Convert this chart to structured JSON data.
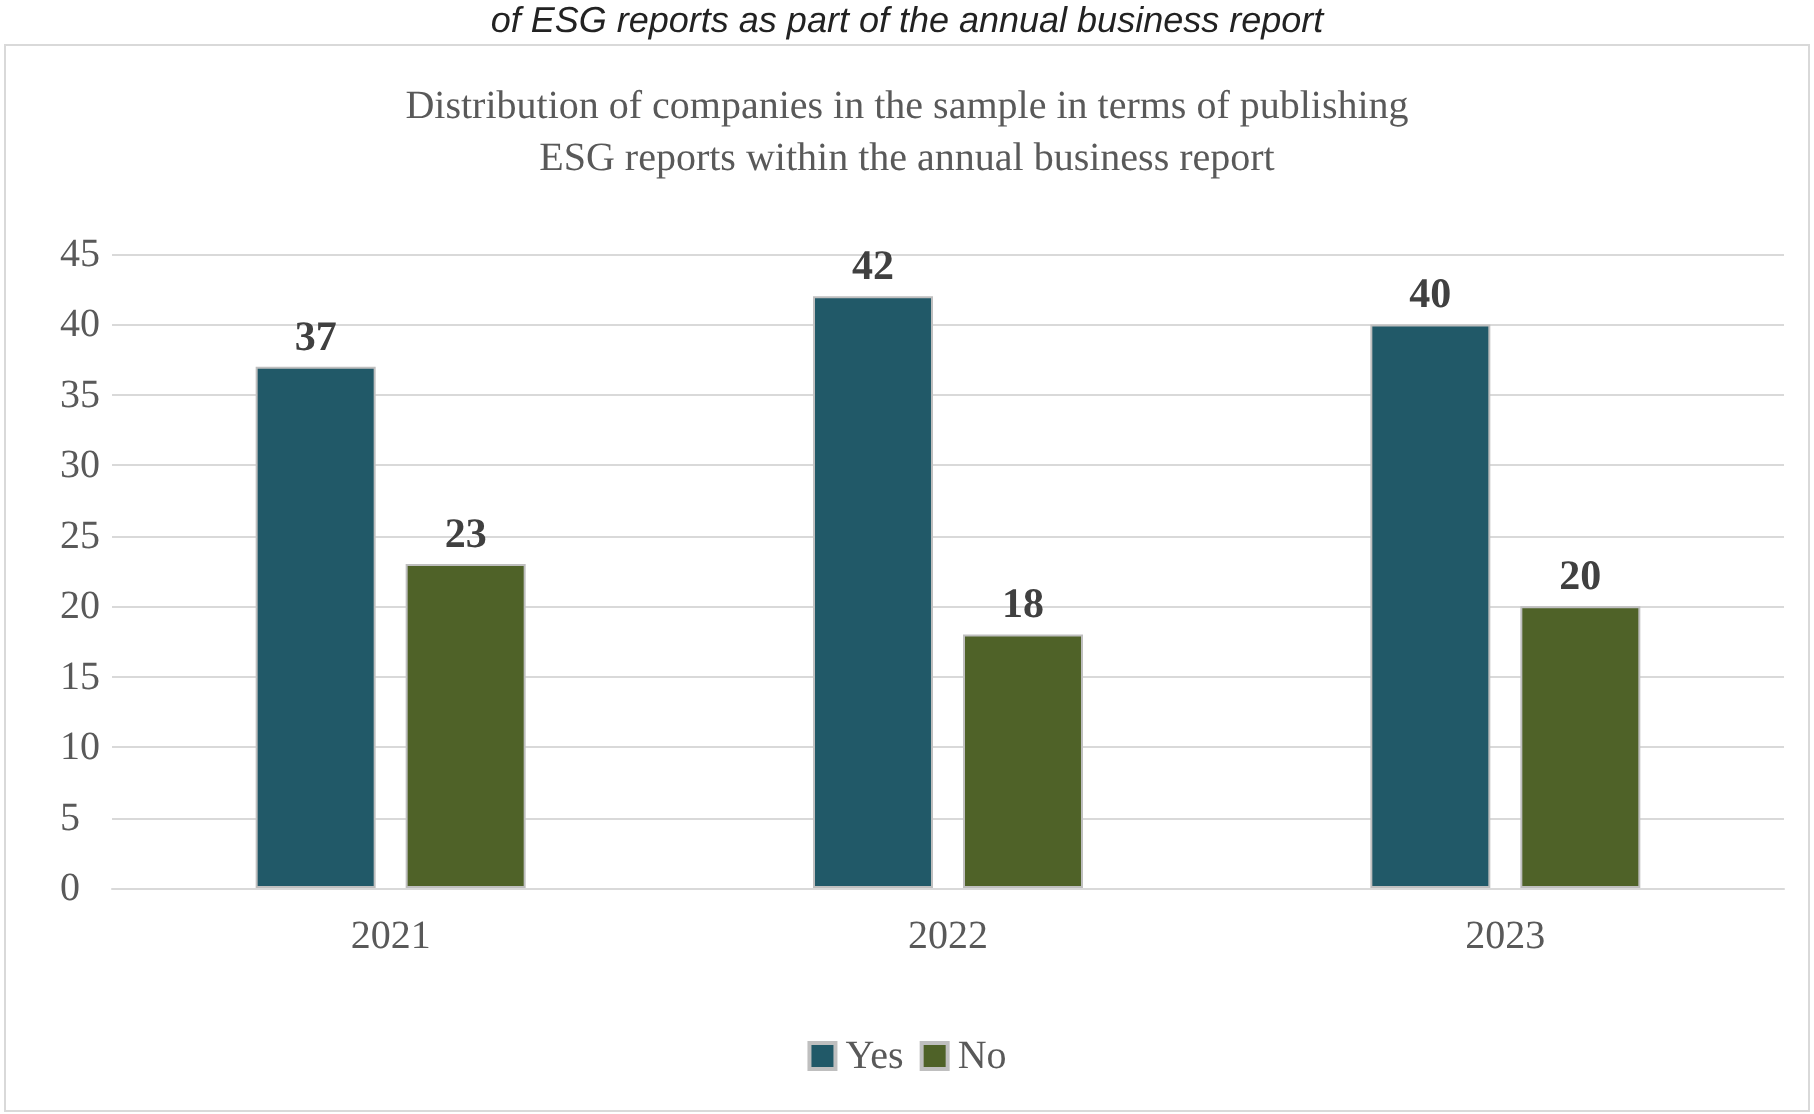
{
  "chart_data": {
    "type": "bar",
    "title": "Distribution of companies in the sample in terms of publishing\nESG reports within the annual business report",
    "annotations": [
      "of ESG reports as part of the annual business report"
    ],
    "categories": [
      "2021",
      "2022",
      "2023"
    ],
    "series": [
      {
        "name": "Yes",
        "color": "#215968",
        "values": [
          37,
          42,
          40
        ]
      },
      {
        "name": "No",
        "color": "#4f6228",
        "values": [
          23,
          18,
          20
        ]
      }
    ],
    "ylim": [
      0,
      45
    ],
    "yticks": [
      0,
      5,
      10,
      15,
      20,
      25,
      30,
      35,
      40,
      45
    ],
    "grid": "y",
    "legend": "bottom",
    "data_labels": true
  }
}
